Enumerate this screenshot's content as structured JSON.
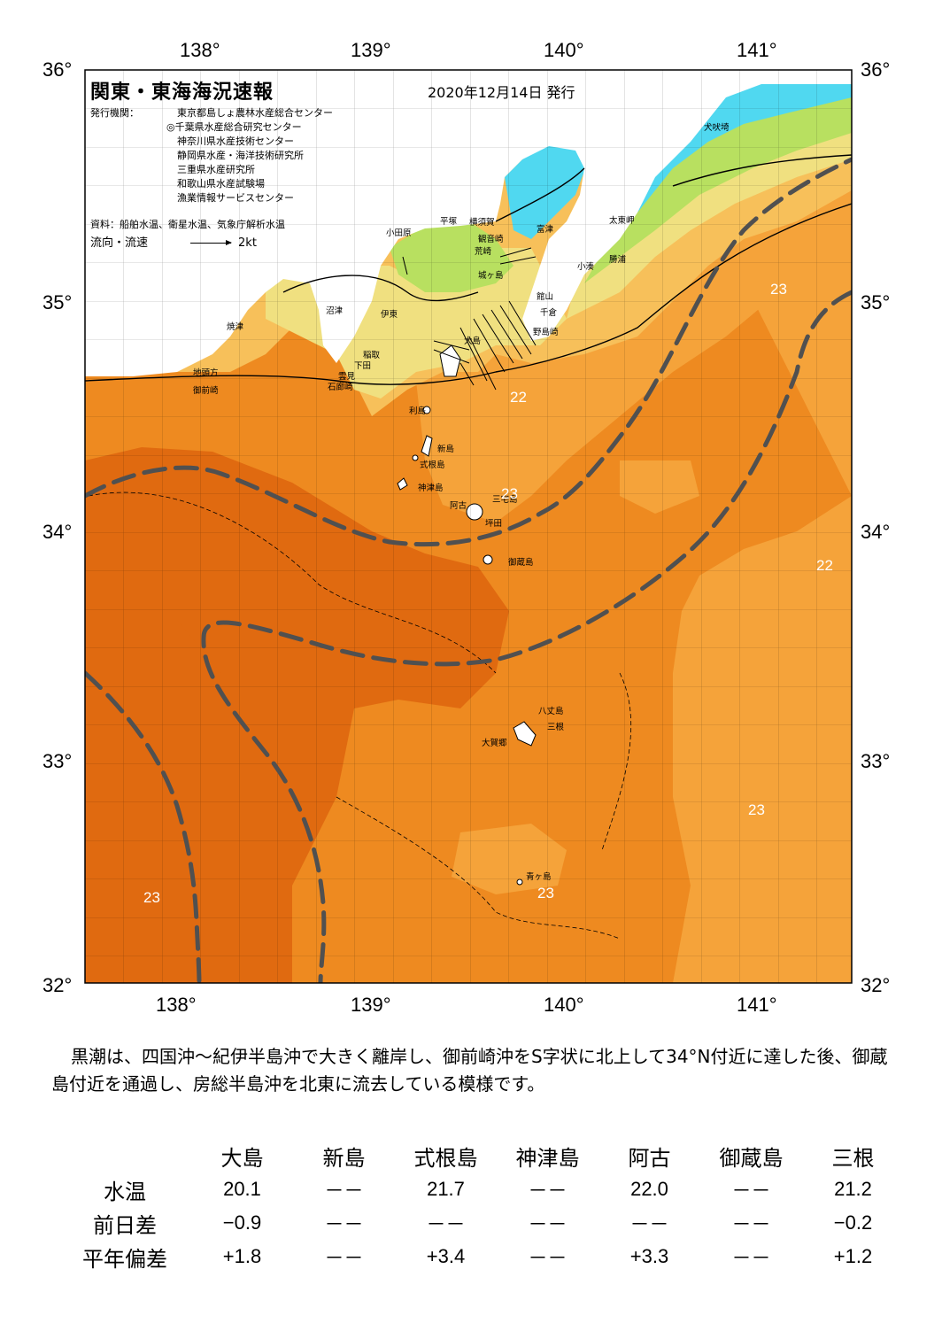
{
  "title": "関東・東海海況速報",
  "issue_date": "2020年12月14日 発行",
  "issuers": {
    "label": "発行機関：",
    "orgs": [
      "東京都島しょ農林水産総合センター",
      "◎千葉県水産総合研究センター",
      "神奈川県水産技術センター",
      "静岡県水産・海洋技術研究所",
      "三重県水産研究所",
      "和歌山県水産試験場",
      "漁業情報サービスセンター"
    ]
  },
  "source": "資料：船舶水温、衛星水温、気象庁解析水温",
  "legend": {
    "label": "流向・流速",
    "arrow_value": "2kt"
  },
  "axes": {
    "lon_labels": [
      "138°",
      "139°",
      "140°",
      "141°"
    ],
    "lat_labels": [
      "36°",
      "35°",
      "34°",
      "33°",
      "32°"
    ],
    "lon_range": [
      137.5,
      141.5
    ],
    "lat_range": [
      32,
      36
    ]
  },
  "place_names": [
    "犬吠埼",
    "太東岬",
    "勝浦",
    "小湊",
    "富津",
    "館山",
    "千倉",
    "野島崎",
    "横須賀",
    "観音崎",
    "荒崎",
    "城ヶ島",
    "平塚",
    "小田原",
    "伊東",
    "大島",
    "沼津",
    "焼津",
    "稲取",
    "下田",
    "雲見",
    "石廊崎",
    "地頭方",
    "御前崎",
    "利島",
    "新島",
    "式根島",
    "神津島",
    "三宅島",
    "阿古",
    "坪田",
    "御蔵島",
    "八丈島",
    "三根",
    "大賀郷",
    "青ヶ島"
  ],
  "isotherm_labels": [
    "23",
    "22",
    "23",
    "22",
    "23",
    "23",
    "23"
  ],
  "colors": {
    "warm_deep": "#e06a10",
    "warm": "#ee8a20",
    "warm_light": "#f5a33a",
    "cool": "#f7c05a",
    "cooler": "#f0e080",
    "green": "#b8e060",
    "cyan": "#50d8f0",
    "kuroshio_axis": "#505050",
    "land": "#ffffff"
  },
  "comment": "黒潮は、四国沖～紀伊半島沖で大きく離岸し、御前崎沖をS字状に北上して34°N付近に達した後、御蔵島付近を通過し、房総半島沖を北東に流去している模様です。",
  "table": {
    "stations": [
      "大島",
      "新島",
      "式根島",
      "神津島",
      "阿古",
      "御蔵島",
      "三根"
    ],
    "rows": [
      {
        "label": "水温",
        "values": [
          "20.1",
          "－－",
          "21.7",
          "－－",
          "22.0",
          "－－",
          "21.2"
        ]
      },
      {
        "label": "前日差",
        "values": [
          "−0.9",
          "－－",
          "－－",
          "－－",
          "－－",
          "－－",
          "−0.2"
        ]
      },
      {
        "label": "平年偏差",
        "values": [
          "+1.8",
          "－－",
          "+3.4",
          "－－",
          "+3.3",
          "－－",
          "+1.2"
        ]
      }
    ]
  }
}
